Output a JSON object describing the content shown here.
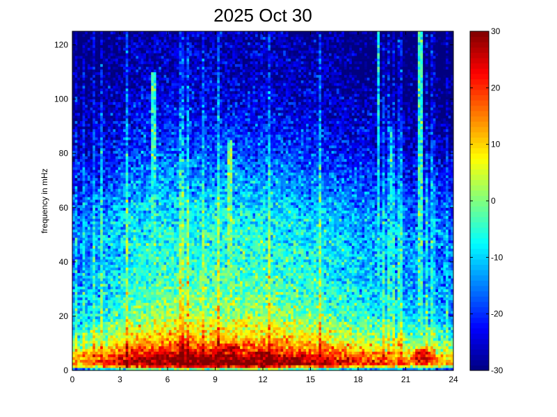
{
  "chart_data": {
    "type": "heatmap",
    "title": "2025 Oct 30",
    "xlabel": "",
    "ylabel": "frequency in mHz",
    "xlim": [
      0,
      24
    ],
    "ylim": [
      0,
      125
    ],
    "x_ticks": [
      0,
      3,
      6,
      9,
      12,
      15,
      18,
      21,
      24
    ],
    "y_ticks": [
      0,
      20,
      40,
      60,
      80,
      100,
      120
    ],
    "x_tick_labels": [
      "0",
      "3",
      "6",
      "9",
      "12",
      "15",
      "18",
      "21",
      "24"
    ],
    "y_tick_labels": [
      "0",
      "20",
      "40",
      "60",
      "80",
      "100",
      "120"
    ],
    "colorbar": {
      "range": [
        -30,
        30
      ],
      "ticks": [
        -30,
        -20,
        -10,
        0,
        10,
        20,
        30
      ],
      "tick_labels": [
        "-30",
        "-20",
        "-10",
        "0",
        "10",
        "20",
        "30"
      ],
      "colormap": "jet"
    },
    "grid": false,
    "bins": {
      "time": 150,
      "frequency": 125
    },
    "power_profile": {
      "frequency_mhz": [
        0,
        1,
        2,
        4,
        6,
        8,
        12,
        20,
        30,
        40,
        50,
        60,
        70,
        80,
        90,
        100,
        110,
        125
      ],
      "power": [
        -15,
        5,
        26,
        24,
        20,
        14,
        7,
        -2,
        -6,
        -8,
        -9,
        -12,
        -16,
        -20,
        -23,
        -26,
        -28,
        -29
      ]
    },
    "activity_envelope": {
      "time_hours": [
        0,
        2,
        4,
        6,
        8,
        10,
        12,
        14,
        16,
        18,
        20,
        22,
        24
      ],
      "offset": [
        -10,
        -4,
        2,
        4,
        4,
        4,
        4,
        2,
        0,
        -3,
        -6,
        -8,
        -10
      ]
    },
    "vertical_streaks": [
      {
        "time_hours": 19.3,
        "power": -8,
        "top_mhz": 125
      },
      {
        "time_hours": 21.9,
        "power": -5,
        "top_mhz": 125
      },
      {
        "time_hours": 20.1,
        "power": -8,
        "top_mhz": 90
      },
      {
        "time_hours": 9.9,
        "power": 0,
        "top_mhz": 85
      },
      {
        "time_hours": 5.1,
        "power": -4,
        "top_mhz": 110
      }
    ],
    "hotspots": [
      {
        "time_hours": 12,
        "frequency_mhz": 4,
        "power": 30
      },
      {
        "time_hours": 10,
        "frequency_mhz": 7,
        "power": 26
      },
      {
        "time_hours": 22,
        "frequency_mhz": 5,
        "power": 24
      }
    ]
  }
}
